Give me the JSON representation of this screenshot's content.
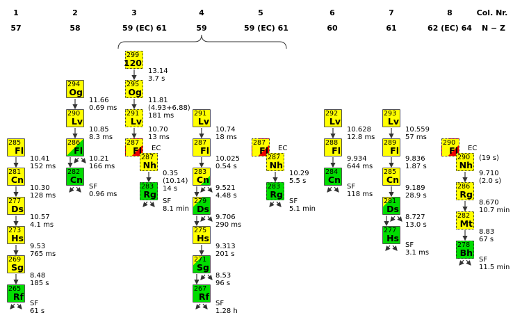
{
  "colors": {
    "alpha": "#ffff00",
    "sf": "#00dd00",
    "ec": "#ee0000"
  },
  "header": {
    "col_label": "Col. Nr.",
    "nz_label": "N − Z",
    "columns": [
      {
        "nr": "1",
        "nz": "57"
      },
      {
        "nr": "2",
        "nz": "58"
      },
      {
        "nr": "3",
        "nz": "59 (EC) 61"
      },
      {
        "nr": "4",
        "nz": "59"
      },
      {
        "nr": "5",
        "nz": "59 (EC) 61"
      },
      {
        "nr": "6",
        "nz": "60"
      },
      {
        "nr": "7",
        "nz": "61"
      },
      {
        "nr": "8",
        "nz": "62 (EC) 64"
      }
    ]
  },
  "columns": [
    {
      "confirmed": true,
      "nuclides": [
        {
          "mass": "285",
          "symbol": "Fl",
          "fill": "alpha",
          "decay": [
            "10.41",
            "152 ms"
          ]
        },
        {
          "mass": "281",
          "symbol": "Cn",
          "fill": "alpha",
          "decay": [
            "10.30",
            "128 ms"
          ]
        },
        {
          "mass": "277",
          "symbol": "Ds",
          "fill": "alpha",
          "decay": [
            "10.57",
            "4.1 ms"
          ]
        },
        {
          "mass": "273",
          "symbol": "Hs",
          "fill": "alpha",
          "decay": [
            "9.53",
            "765 ms"
          ]
        },
        {
          "mass": "269",
          "symbol": "Sg",
          "fill": "alpha",
          "decay": [
            "8.48",
            "185 s"
          ]
        },
        {
          "mass": "265",
          "symbol": "Rf",
          "fill": "sf",
          "sf": true,
          "decay": [
            "SF",
            "61 s"
          ]
        }
      ]
    },
    {
      "confirmed": true,
      "nuclides": [
        {
          "mass": "294",
          "symbol": "Og",
          "fill": "alpha",
          "decay": [
            "11.66",
            "0.69 ms"
          ]
        },
        {
          "mass": "290",
          "symbol": "Lv",
          "fill": "alpha",
          "decay": [
            "10.85",
            "8.3 ms"
          ]
        },
        {
          "mass": "286",
          "symbol": "Fl",
          "fill": "alpha-sf",
          "sf": true,
          "decay": [
            "10.21",
            "166 ms"
          ]
        },
        {
          "mass": "282",
          "symbol": "Cn",
          "fill": "sf",
          "sf": true,
          "decay": [
            "SF",
            "0.96 ms"
          ]
        }
      ]
    },
    {
      "confirmed": false,
      "nuclides": [
        {
          "mass": "299",
          "symbol": "120",
          "fill": "alpha",
          "decay": [
            "13.14",
            "3.7 s"
          ]
        },
        {
          "mass": "295",
          "symbol": "Og",
          "fill": "alpha",
          "decay": [
            "11.81",
            "(4.93+6.88)",
            "181 ms"
          ]
        },
        {
          "mass": "291",
          "symbol": "Lv",
          "fill": "alpha",
          "decay": [
            "10.70",
            "13 ms"
          ]
        },
        {
          "mass": "287",
          "symbol": "Fl",
          "fill": "ec-minor",
          "ec": "EC",
          "decay": []
        },
        {
          "mass": "287",
          "symbol": "Nh",
          "fill": "alpha",
          "ec_daughter": true,
          "decay": [
            "0.35",
            "(10.14)",
            "14 s"
          ]
        },
        {
          "mass": "283",
          "symbol": "Rg",
          "fill": "sf",
          "sf": true,
          "decay": [
            "SF",
            "8.1 min"
          ]
        }
      ]
    },
    {
      "confirmed": true,
      "nuclides": [
        {
          "mass": "291",
          "symbol": "Lv",
          "fill": "alpha",
          "decay": [
            "10.74",
            "18 ms"
          ]
        },
        {
          "mass": "287",
          "symbol": "Fl",
          "fill": "alpha",
          "decay": [
            "10.025",
            "0.54 s"
          ]
        },
        {
          "mass": "283",
          "symbol": "Cn",
          "fill": "sf-minor",
          "sf": true,
          "decay": [
            "9.521",
            "4.48 s"
          ]
        },
        {
          "mass": "279",
          "symbol": "Ds",
          "fill": "alpha-minor",
          "sf": true,
          "decay": [
            "9.706",
            "290 ms"
          ]
        },
        {
          "mass": "275",
          "symbol": "Hs",
          "fill": "alpha",
          "decay": [
            "9.313",
            "201 s"
          ]
        },
        {
          "mass": "271",
          "symbol": "Sg",
          "fill": "alpha-minor",
          "sf": true,
          "decay": [
            "8.53",
            "96 s"
          ]
        },
        {
          "mass": "267",
          "symbol": "Rf",
          "fill": "sf",
          "sf": true,
          "decay": [
            "SF",
            "1.28 h"
          ]
        }
      ]
    },
    {
      "confirmed": false,
      "nuclides": [
        {
          "mass": "287",
          "symbol": "Fl",
          "fill": "ec-minor",
          "ec": "EC",
          "decay": []
        },
        {
          "mass": "287",
          "symbol": "Nh",
          "fill": "alpha",
          "ec_daughter": true,
          "decay": [
            "10.29",
            "5.5 s"
          ]
        },
        {
          "mass": "283",
          "symbol": "Rg",
          "fill": "sf",
          "sf": true,
          "decay": [
            "SF",
            "5.1 min"
          ]
        }
      ]
    },
    {
      "confirmed": true,
      "nuclides": [
        {
          "mass": "292",
          "symbol": "Lv",
          "fill": "alpha",
          "decay": [
            "10.628",
            "12.8 ms"
          ]
        },
        {
          "mass": "288",
          "symbol": "Fl",
          "fill": "alpha",
          "decay": [
            "9.934",
            "644 ms"
          ]
        },
        {
          "mass": "284",
          "symbol": "Cn",
          "fill": "sf",
          "sf": true,
          "decay": [
            "SF",
            "118 ms"
          ]
        }
      ]
    },
    {
      "confirmed": true,
      "nuclides": [
        {
          "mass": "293",
          "symbol": "Lv",
          "fill": "alpha",
          "decay": [
            "10.559",
            "57 ms"
          ]
        },
        {
          "mass": "289",
          "symbol": "Fl",
          "fill": "alpha",
          "decay": [
            "9.836",
            "1.87 s"
          ]
        },
        {
          "mass": "285",
          "symbol": "Cn",
          "fill": "alpha",
          "decay": [
            "9.189",
            "28.9 s"
          ]
        },
        {
          "mass": "281",
          "symbol": "Ds",
          "fill": "alpha-minor",
          "sf": true,
          "decay": [
            "8.727",
            "13.0 s"
          ]
        },
        {
          "mass": "277",
          "symbol": "Hs",
          "fill": "sf",
          "sf": true,
          "decay": [
            "SF",
            "3.1 ms"
          ]
        }
      ]
    },
    {
      "confirmed": false,
      "nuclides": [
        {
          "mass": "290",
          "symbol": "Fl",
          "fill": "ec-minor",
          "ec": "EC",
          "decay": []
        },
        {
          "mass": "290",
          "symbol": "Nh",
          "fill": "alpha",
          "ec_daughter": true,
          "note": "(19 s)",
          "decay": [
            "9.710",
            "(2.0 s)"
          ]
        },
        {
          "mass": "286",
          "symbol": "Rg",
          "fill": "alpha",
          "decay": [
            "8.670",
            "10.7 min"
          ]
        },
        {
          "mass": "282",
          "symbol": "Mt",
          "fill": "alpha",
          "decay": [
            "8.83",
            "67 s"
          ]
        },
        {
          "mass": "278",
          "symbol": "Bh",
          "fill": "sf",
          "sf": true,
          "decay": [
            "SF",
            "11.5 min"
          ]
        }
      ]
    }
  ]
}
